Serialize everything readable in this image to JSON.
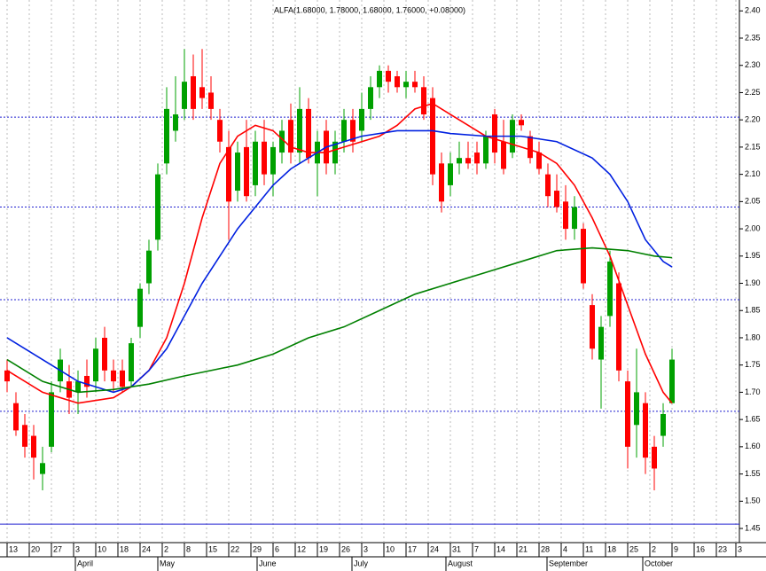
{
  "chart_data": {
    "type": "candlestick",
    "title": "ALFA(1.68000, 1.78000, 1.68000, 1.76000, +0.08000)",
    "up_color": "#00a000",
    "down_color": "#ff0000",
    "candles": [
      [
        1.74,
        1.76,
        1.7,
        1.72
      ],
      [
        1.68,
        1.7,
        1.62,
        1.63
      ],
      [
        1.64,
        1.66,
        1.58,
        1.6
      ],
      [
        1.62,
        1.64,
        1.54,
        1.58
      ],
      [
        1.55,
        1.6,
        1.52,
        1.57
      ],
      [
        1.6,
        1.72,
        1.59,
        1.7
      ],
      [
        1.72,
        1.78,
        1.7,
        1.76
      ],
      [
        1.72,
        1.75,
        1.66,
        1.69
      ],
      [
        1.7,
        1.74,
        1.66,
        1.72
      ],
      [
        1.73,
        1.76,
        1.69,
        1.71
      ],
      [
        1.72,
        1.8,
        1.7,
        1.78
      ],
      [
        1.8,
        1.82,
        1.72,
        1.74
      ],
      [
        1.74,
        1.76,
        1.7,
        1.72
      ],
      [
        1.74,
        1.76,
        1.7,
        1.71
      ],
      [
        1.72,
        1.8,
        1.71,
        1.79
      ],
      [
        1.82,
        1.9,
        1.8,
        1.89
      ],
      [
        1.9,
        1.98,
        1.88,
        1.96
      ],
      [
        1.98,
        2.12,
        1.96,
        2.1
      ],
      [
        2.12,
        2.26,
        2.1,
        2.22
      ],
      [
        2.18,
        2.28,
        2.16,
        2.21
      ],
      [
        2.22,
        2.33,
        2.2,
        2.27
      ],
      [
        2.28,
        2.32,
        2.2,
        2.22
      ],
      [
        2.26,
        2.33,
        2.22,
        2.24
      ],
      [
        2.25,
        2.28,
        2.2,
        2.22
      ],
      [
        2.2,
        2.22,
        2.14,
        2.16
      ],
      [
        2.15,
        2.18,
        1.98,
        2.05
      ],
      [
        2.07,
        2.16,
        2.05,
        2.14
      ],
      [
        2.15,
        2.2,
        2.05,
        2.06
      ],
      [
        2.08,
        2.18,
        2.06,
        2.16
      ],
      [
        2.16,
        2.2,
        2.08,
        2.1
      ],
      [
        2.1,
        2.16,
        2.06,
        2.15
      ],
      [
        2.14,
        2.2,
        2.12,
        2.18
      ],
      [
        2.2,
        2.23,
        2.12,
        2.14
      ],
      [
        2.14,
        2.26,
        2.12,
        2.22
      ],
      [
        2.22,
        2.24,
        2.12,
        2.13
      ],
      [
        2.12,
        2.18,
        2.06,
        2.16
      ],
      [
        2.18,
        2.2,
        2.1,
        2.12
      ],
      [
        2.12,
        2.18,
        2.1,
        2.16
      ],
      [
        2.16,
        2.22,
        2.14,
        2.2
      ],
      [
        2.2,
        2.22,
        2.14,
        2.16
      ],
      [
        2.18,
        2.25,
        2.16,
        2.22
      ],
      [
        2.22,
        2.28,
        2.2,
        2.26
      ],
      [
        2.26,
        2.3,
        2.24,
        2.29
      ],
      [
        2.29,
        2.3,
        2.25,
        2.27
      ],
      [
        2.28,
        2.29,
        2.25,
        2.26
      ],
      [
        2.26,
        2.29,
        2.24,
        2.27
      ],
      [
        2.27,
        2.29,
        2.25,
        2.26
      ],
      [
        2.26,
        2.28,
        2.2,
        2.21
      ],
      [
        2.24,
        2.26,
        2.08,
        2.1
      ],
      [
        2.12,
        2.14,
        2.03,
        2.05
      ],
      [
        2.08,
        2.14,
        2.06,
        2.12
      ],
      [
        2.12,
        2.16,
        2.1,
        2.13
      ],
      [
        2.13,
        2.16,
        2.11,
        2.12
      ],
      [
        2.14,
        2.16,
        2.1,
        2.12
      ],
      [
        2.12,
        2.18,
        2.11,
        2.17
      ],
      [
        2.21,
        2.22,
        2.12,
        2.14
      ],
      [
        2.16,
        2.2,
        2.1,
        2.11
      ],
      [
        2.14,
        2.21,
        2.13,
        2.2
      ],
      [
        2.2,
        2.21,
        2.18,
        2.19
      ],
      [
        2.17,
        2.18,
        2.12,
        2.13
      ],
      [
        2.14,
        2.16,
        2.1,
        2.11
      ],
      [
        2.1,
        2.12,
        2.04,
        2.06
      ],
      [
        2.07,
        2.1,
        2.03,
        2.04
      ],
      [
        2.05,
        2.08,
        1.98,
        2.0
      ],
      [
        2.0,
        2.06,
        1.98,
        2.04
      ],
      [
        2.0,
        2.01,
        1.89,
        1.9
      ],
      [
        1.86,
        1.88,
        1.76,
        1.78
      ],
      [
        1.76,
        1.84,
        1.67,
        1.82
      ],
      [
        1.84,
        1.96,
        1.82,
        1.94
      ],
      [
        1.9,
        1.92,
        1.72,
        1.74
      ],
      [
        1.72,
        1.74,
        1.56,
        1.6
      ],
      [
        1.64,
        1.78,
        1.58,
        1.7
      ],
      [
        1.68,
        1.7,
        1.55,
        1.58
      ],
      [
        1.6,
        1.62,
        1.52,
        1.56
      ],
      [
        1.62,
        1.68,
        1.6,
        1.66
      ],
      [
        1.68,
        1.78,
        1.68,
        1.76
      ]
    ],
    "series": [
      {
        "color": "#ff0000",
        "x": [
          0,
          4,
          8,
          12,
          14,
          16,
          18,
          20,
          22,
          24,
          26,
          28,
          30,
          32,
          34,
          36,
          38,
          40,
          42,
          44,
          46,
          48,
          50,
          52,
          54,
          56,
          58,
          60,
          62,
          64,
          66,
          68,
          70,
          72,
          74,
          75
        ],
        "values": [
          1.74,
          1.7,
          1.68,
          1.69,
          1.71,
          1.74,
          1.8,
          1.9,
          2.02,
          2.12,
          2.17,
          2.19,
          2.18,
          2.15,
          2.14,
          2.14,
          2.15,
          2.16,
          2.17,
          2.19,
          2.22,
          2.23,
          2.21,
          2.19,
          2.17,
          2.16,
          2.15,
          2.14,
          2.12,
          2.08,
          2.02,
          1.95,
          1.86,
          1.77,
          1.7,
          1.68
        ]
      },
      {
        "color": "#0020e0",
        "x": [
          0,
          4,
          8,
          12,
          14,
          16,
          18,
          20,
          22,
          24,
          26,
          28,
          30,
          32,
          34,
          36,
          38,
          40,
          44,
          48,
          50,
          54,
          58,
          62,
          66,
          68,
          70,
          72,
          74,
          75
        ],
        "values": [
          1.8,
          1.76,
          1.72,
          1.7,
          1.71,
          1.74,
          1.78,
          1.84,
          1.9,
          1.95,
          2.0,
          2.04,
          2.08,
          2.11,
          2.13,
          2.15,
          2.16,
          2.17,
          2.18,
          2.18,
          2.175,
          2.17,
          2.17,
          2.16,
          2.13,
          2.1,
          2.05,
          1.98,
          1.94,
          1.93
        ]
      },
      {
        "color": "#008000",
        "x": [
          0,
          4,
          8,
          12,
          16,
          20,
          26,
          30,
          34,
          38,
          42,
          46,
          50,
          54,
          58,
          62,
          66,
          70,
          73,
          75
        ],
        "values": [
          1.76,
          1.72,
          1.7,
          1.705,
          1.715,
          1.73,
          1.75,
          1.77,
          1.8,
          1.82,
          1.85,
          1.88,
          1.9,
          1.92,
          1.94,
          1.96,
          1.965,
          1.96,
          1.95,
          1.947
        ]
      }
    ],
    "hlines": [
      2.205,
      2.04,
      1.87,
      1.665,
      1.458
    ],
    "xlim": [
      -0.8,
      82.6
    ],
    "ylim": [
      1.424,
      2.42
    ],
    "yticks": [
      {
        "value": 1.45,
        "label": "1.45"
      },
      {
        "value": 1.5,
        "label": "1.50"
      },
      {
        "value": 1.55,
        "label": "1.55"
      },
      {
        "value": 1.6,
        "label": "1.60"
      },
      {
        "value": 1.65,
        "label": "1.65"
      },
      {
        "value": 1.7,
        "label": "1.70"
      },
      {
        "value": 1.75,
        "label": "1.75"
      },
      {
        "value": 1.8,
        "label": "1.80"
      },
      {
        "value": 1.85,
        "label": "1.85"
      },
      {
        "value": 1.9,
        "label": "1.90"
      },
      {
        "value": 1.95,
        "label": "1.95"
      },
      {
        "value": 2.0,
        "label": "2.00"
      },
      {
        "value": 2.05,
        "label": "2.05"
      },
      {
        "value": 2.1,
        "label": "2.10"
      },
      {
        "value": 2.15,
        "label": "2.15"
      },
      {
        "value": 2.2,
        "label": "2.20"
      },
      {
        "value": 2.25,
        "label": "2.25"
      },
      {
        "value": 2.3,
        "label": "2.30"
      },
      {
        "value": 2.35,
        "label": "2.35"
      },
      {
        "value": 2.4,
        "label": "2.40"
      }
    ],
    "xticks": [
      {
        "value": 0,
        "label": "13"
      },
      {
        "value": 2.5,
        "label": "20"
      },
      {
        "value": 5,
        "label": "27"
      },
      {
        "value": 7.5,
        "label": "3"
      },
      {
        "value": 10,
        "label": "10"
      },
      {
        "value": 12.5,
        "label": "18"
      },
      {
        "value": 15,
        "label": "24"
      },
      {
        "value": 17.5,
        "label": "2"
      },
      {
        "value": 20,
        "label": "8"
      },
      {
        "value": 22.5,
        "label": "15"
      },
      {
        "value": 25,
        "label": "22"
      },
      {
        "value": 27.5,
        "label": "29"
      },
      {
        "value": 30,
        "label": "6"
      },
      {
        "value": 32.5,
        "label": "12"
      },
      {
        "value": 35,
        "label": "19"
      },
      {
        "value": 37.5,
        "label": "26"
      },
      {
        "value": 40,
        "label": "3"
      },
      {
        "value": 42.5,
        "label": "10"
      },
      {
        "value": 45,
        "label": "17"
      },
      {
        "value": 47.5,
        "label": "24"
      },
      {
        "value": 50,
        "label": "31"
      },
      {
        "value": 52.5,
        "label": "7"
      },
      {
        "value": 55,
        "label": "14"
      },
      {
        "value": 57.5,
        "label": "21"
      },
      {
        "value": 60,
        "label": "28"
      },
      {
        "value": 62.5,
        "label": "4"
      },
      {
        "value": 65,
        "label": "11"
      },
      {
        "value": 67.5,
        "label": "18"
      },
      {
        "value": 70,
        "label": "25"
      },
      {
        "value": 72.5,
        "label": "2"
      },
      {
        "value": 75,
        "label": "9"
      },
      {
        "value": 77.5,
        "label": "16"
      },
      {
        "value": 80,
        "label": "23"
      },
      {
        "value": 82.2,
        "label": "3"
      }
    ],
    "months": [
      {
        "value": 7.7,
        "label": "April"
      },
      {
        "value": 17,
        "label": "May"
      },
      {
        "value": 28.2,
        "label": "June"
      },
      {
        "value": 38.9,
        "label": "July"
      },
      {
        "value": 49.5,
        "label": "August"
      },
      {
        "value": 60.9,
        "label": "September"
      },
      {
        "value": 71.7,
        "label": "October"
      }
    ],
    "grid": true
  }
}
